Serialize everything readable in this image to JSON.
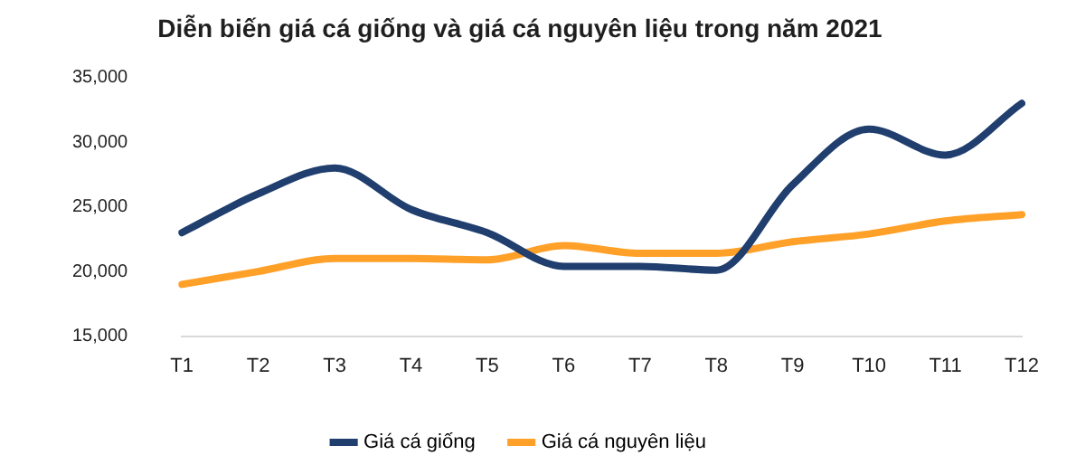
{
  "chart_data": {
    "type": "line",
    "title": "Diễn biến giá cá giống và giá cá nguyên liệu trong năm 2021",
    "categories": [
      "T1",
      "T2",
      "T3",
      "T4",
      "T5",
      "T6",
      "T7",
      "T8",
      "T9",
      "T10",
      "T11",
      "T12"
    ],
    "series": [
      {
        "name": "Giá cá giống",
        "color": "#203f6e",
        "values": [
          23000,
          26000,
          28000,
          24800,
          23000,
          20400,
          20400,
          20100,
          26700,
          31000,
          29000,
          33000
        ]
      },
      {
        "name": "Giá cá nguyên liệu",
        "color": "#ffa029",
        "values": [
          19000,
          20000,
          21000,
          21000,
          20900,
          22000,
          21400,
          21400,
          22300,
          22900,
          23900,
          24400
        ]
      }
    ],
    "ylim": [
      15000,
      35000
    ],
    "yticks": [
      {
        "value": 15000,
        "label": "15,000"
      },
      {
        "value": 20000,
        "label": "20,000"
      },
      {
        "value": 25000,
        "label": "25,000"
      },
      {
        "value": 30000,
        "label": "30,000"
      },
      {
        "value": 35000,
        "label": "35,000"
      }
    ],
    "grid": false,
    "legend": "bottom",
    "marker": "none",
    "line_style": "solid"
  }
}
